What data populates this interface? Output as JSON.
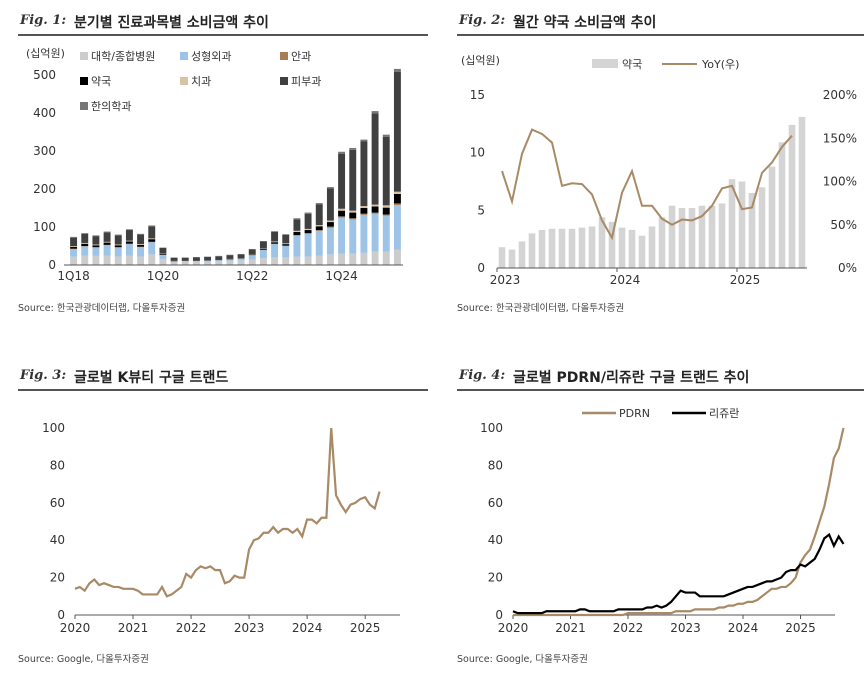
{
  "fig1": {
    "fig_label": "Fig. 1:",
    "title": "분기별 진료과목별 소비금액 추이",
    "unit": "(십억원)",
    "source": "Source: 한국관광데이터랩, 다올투자증권",
    "colors": {
      "대학/종합병원": "#cccccc",
      "성형외과": "#9dc3e6",
      "안과": "#a67c52",
      "약국": "#000000",
      "치과": "#d9c3a5",
      "피부과": "#404040",
      "한의학과": "#767676"
    },
    "chart_data": {
      "type": "bar",
      "stacked": true,
      "categories": [
        "1Q18",
        "2Q18",
        "3Q18",
        "4Q18",
        "1Q19",
        "2Q19",
        "3Q19",
        "4Q19",
        "1Q20",
        "2Q20",
        "3Q20",
        "4Q20",
        "1Q21",
        "2Q21",
        "3Q21",
        "4Q21",
        "1Q22",
        "2Q22",
        "3Q22",
        "4Q22",
        "1Q23",
        "2Q23",
        "3Q23",
        "4Q23",
        "1Q24",
        "2Q24",
        "3Q24",
        "4Q24",
        "1Q25",
        "2Q25"
      ],
      "x_tick_labels": [
        "1Q18",
        "1Q20",
        "1Q22",
        "1Q24"
      ],
      "series": [
        {
          "name": "대학/종합병원",
          "values": [
            22,
            25,
            24,
            25,
            22,
            25,
            22,
            28,
            15,
            8,
            9,
            9,
            9,
            10,
            11,
            12,
            14,
            18,
            20,
            20,
            22,
            22,
            25,
            28,
            30,
            30,
            32,
            35,
            35,
            40
          ]
        },
        {
          "name": "성형외과",
          "values": [
            20,
            24,
            22,
            27,
            24,
            30,
            25,
            32,
            12,
            2,
            2,
            2,
            3,
            3,
            4,
            5,
            12,
            22,
            35,
            30,
            55,
            60,
            65,
            70,
            95,
            90,
            100,
            100,
            95,
            118
          ]
        },
        {
          "name": "안과",
          "values": [
            1,
            1,
            1,
            1,
            1,
            1,
            1,
            1,
            0,
            0,
            0,
            0,
            0,
            0,
            0,
            0,
            0,
            0,
            1,
            1,
            2,
            2,
            2,
            3,
            3,
            3,
            3,
            3,
            3,
            4
          ]
        },
        {
          "name": "약국",
          "values": [
            5,
            6,
            5,
            6,
            5,
            6,
            5,
            7,
            3,
            1,
            1,
            1,
            1,
            1,
            1,
            1,
            2,
            3,
            4,
            4,
            8,
            8,
            10,
            12,
            15,
            15,
            15,
            16,
            18,
            25
          ]
        },
        {
          "name": "치과",
          "values": [
            2,
            2,
            2,
            2,
            2,
            2,
            2,
            2,
            1,
            0,
            0,
            0,
            0,
            0,
            0,
            0,
            1,
            1,
            2,
            2,
            3,
            3,
            3,
            4,
            5,
            5,
            5,
            5,
            6,
            6
          ]
        },
        {
          "name": "피부과",
          "values": [
            22,
            24,
            22,
            25,
            24,
            28,
            25,
            32,
            14,
            8,
            7,
            8,
            8,
            9,
            10,
            10,
            12,
            18,
            25,
            22,
            30,
            40,
            55,
            85,
            145,
            160,
            170,
            240,
            180,
            315
          ]
        },
        {
          "name": "한의학과",
          "values": [
            2,
            2,
            2,
            2,
            2,
            2,
            2,
            2,
            1,
            1,
            1,
            1,
            1,
            1,
            1,
            1,
            1,
            1,
            2,
            2,
            3,
            3,
            3,
            3,
            5,
            5,
            5,
            6,
            6,
            8
          ]
        }
      ],
      "ylim": [
        0,
        500
      ],
      "yticks": [
        0,
        100,
        200,
        300,
        400,
        500
      ]
    }
  },
  "fig2": {
    "fig_label": "Fig. 2:",
    "title": "월간 약국 소비금액 추이",
    "unit": "(십억원)",
    "source": "Source: 한국관광데이터랩, 다올투자증권",
    "colors": {
      "bar": "#d4d4d4",
      "line": "#a88a66"
    },
    "chart_data": {
      "type": "bar+line",
      "x_tick_labels": [
        "2023",
        "2024",
        "2025"
      ],
      "series": [
        {
          "name": "약국",
          "axis": "left",
          "values": [
            1.8,
            1.6,
            2.3,
            3.0,
            3.3,
            3.4,
            3.4,
            3.4,
            3.5,
            3.6,
            4.4,
            4.0,
            3.5,
            3.3,
            2.8,
            3.6,
            4.4,
            5.4,
            5.2,
            5.2,
            5.4,
            5.4,
            5.6,
            7.7,
            7.5,
            6.5,
            7.0,
            8.8,
            10.9,
            12.4,
            13.1
          ]
        },
        {
          "name": "YoY(우)",
          "axis": "right",
          "values": [
            112,
            77,
            132,
            160,
            155,
            145,
            95,
            98,
            97,
            85,
            55,
            35,
            87,
            112,
            72,
            72,
            57,
            50,
            56,
            55,
            60,
            72,
            92,
            95,
            68,
            70,
            110,
            122,
            140,
            153,
            0
          ]
        }
      ],
      "ylim_left": [
        0,
        15
      ],
      "yticks_left": [
        0,
        5,
        10,
        15
      ],
      "ylim_right": [
        0,
        200
      ],
      "yticks_right": [
        "0%",
        "50%",
        "100%",
        "150%",
        "200%"
      ]
    }
  },
  "fig3": {
    "fig_label": "Fig. 3:",
    "title": "글로벌 K뷰티 구글 트랜드",
    "source": "Source: Google, 다올투자증권",
    "colors": {
      "line": "#a88a66"
    },
    "chart_data": {
      "type": "line",
      "x_start": 2020.0,
      "x_step": 0.0833,
      "x_tick_labels": [
        "2020",
        "2021",
        "2022",
        "2023",
        "2024",
        "2025"
      ],
      "ylim": [
        0,
        100
      ],
      "yticks": [
        0,
        20,
        40,
        60,
        80,
        100
      ],
      "series": [
        {
          "name": "",
          "values": [
            14,
            15,
            13,
            17,
            19,
            16,
            17,
            16,
            15,
            15,
            14,
            14,
            14,
            13,
            11,
            11,
            11,
            11,
            15,
            10,
            11,
            13,
            15,
            22,
            20,
            24,
            26,
            25,
            26,
            24,
            24,
            17,
            18,
            21,
            20,
            20,
            35,
            40,
            41,
            44,
            44,
            47,
            44,
            46,
            46,
            44,
            46,
            42,
            51,
            51,
            49,
            52,
            52,
            100,
            64,
            59,
            55,
            59,
            60,
            62,
            63,
            59,
            57,
            66
          ]
        }
      ]
    }
  },
  "fig4": {
    "fig_label": "Fig. 4:",
    "title": "글로벌 PDRN/리쥬란 구글 트랜드 추이",
    "source": "Source: Google, 다올투자증권",
    "colors": {
      "PDRN": "#a88a66",
      "리쥬란": "#000000"
    },
    "chart_data": {
      "type": "line",
      "x_start": 2020.0,
      "x_step": 0.0833,
      "x_tick_labels": [
        "2020",
        "2021",
        "2022",
        "2023",
        "2024",
        "2025"
      ],
      "ylim": [
        0,
        100
      ],
      "yticks": [
        0,
        20,
        40,
        60,
        80,
        100
      ],
      "series": [
        {
          "name": "PDRN",
          "values": [
            0,
            0,
            0,
            0,
            0,
            0,
            0,
            0,
            0,
            0,
            0,
            0,
            0,
            0,
            0,
            0,
            0,
            0,
            0,
            0,
            0,
            0,
            0,
            0,
            1,
            1,
            1,
            1,
            1,
            1,
            1,
            1,
            1,
            1,
            2,
            2,
            2,
            2,
            3,
            3,
            3,
            3,
            3,
            4,
            4,
            5,
            5,
            6,
            6,
            7,
            7,
            8,
            10,
            12,
            14,
            14,
            15,
            15,
            17,
            20,
            28,
            32,
            35,
            42,
            50,
            58,
            70,
            84,
            89,
            100
          ]
        },
        {
          "name": "리쥬란",
          "values": [
            2,
            1,
            1,
            1,
            1,
            1,
            1,
            2,
            2,
            2,
            2,
            2,
            2,
            2,
            3,
            3,
            2,
            2,
            2,
            2,
            2,
            2,
            3,
            3,
            3,
            3,
            3,
            3,
            4,
            4,
            5,
            4,
            5,
            7,
            10,
            13,
            12,
            12,
            12,
            10,
            10,
            10,
            10,
            10,
            10,
            11,
            12,
            13,
            14,
            15,
            15,
            16,
            17,
            18,
            18,
            19,
            20,
            23,
            24,
            24,
            27,
            26,
            28,
            30,
            35,
            41,
            43,
            37,
            42,
            38
          ]
        }
      ]
    }
  }
}
